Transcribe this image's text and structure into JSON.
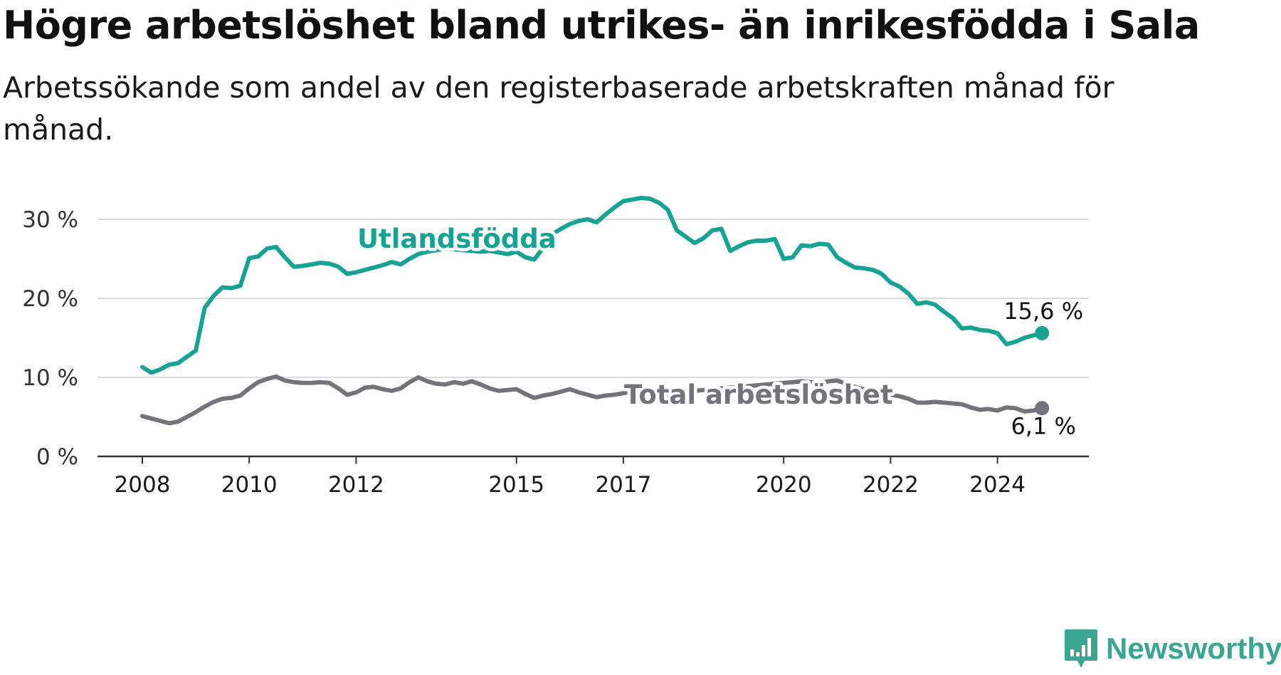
{
  "title": "Högre arbetslöshet bland utrikes- än inrikesfödda i Sala",
  "subtitle": "Arbetssökande som andel av den registerbaserade arbetskraften månad för månad.",
  "logo": {
    "text": "Newsworthy",
    "icon": "newsworthy-chart-icon",
    "color": "#3aa591"
  },
  "chart_data": {
    "type": "line",
    "title": "Högre arbetslöshet bland utrikes- än inrikesfödda i Sala",
    "subtitle": "Arbetssökande som andel av den registerbaserade arbetskraften månad för månad.",
    "xlabel": "",
    "ylabel": "",
    "xlim": [
      "2008-01",
      "2025-06"
    ],
    "ylim": [
      0,
      30
    ],
    "y_ticks": [
      0,
      10,
      20,
      30
    ],
    "y_tick_labels": [
      "0 %",
      "10 %",
      "20 %",
      "30 %"
    ],
    "x_ticks": [
      "2008",
      "2010",
      "2012",
      "2015",
      "2017",
      "2020",
      "2022",
      "2024"
    ],
    "grid": "horizontal",
    "legend": "none",
    "series": [
      {
        "name": "Utlandsfödda",
        "color": "#16a393",
        "end_label": "15,6 %",
        "points": [
          [
            "2008-01",
            11.3
          ],
          [
            "2008-03",
            10.6
          ],
          [
            "2008-05",
            11.0
          ],
          [
            "2008-07",
            11.6
          ],
          [
            "2008-09",
            11.8
          ],
          [
            "2008-11",
            12.6
          ],
          [
            "2009-01",
            13.4
          ],
          [
            "2009-03",
            18.8
          ],
          [
            "2009-05",
            20.3
          ],
          [
            "2009-07",
            21.4
          ],
          [
            "2009-09",
            21.3
          ],
          [
            "2009-11",
            21.6
          ],
          [
            "2010-01",
            25.1
          ],
          [
            "2010-03",
            25.3
          ],
          [
            "2010-05",
            26.3
          ],
          [
            "2010-07",
            26.5
          ],
          [
            "2010-09",
            25.2
          ],
          [
            "2010-11",
            24.0
          ],
          [
            "2011-01",
            24.1
          ],
          [
            "2011-03",
            24.3
          ],
          [
            "2011-05",
            24.5
          ],
          [
            "2011-07",
            24.4
          ],
          [
            "2011-09",
            24.0
          ],
          [
            "2011-11",
            23.1
          ],
          [
            "2012-01",
            23.3
          ],
          [
            "2012-03",
            23.6
          ],
          [
            "2012-05",
            23.9
          ],
          [
            "2012-07",
            24.2
          ],
          [
            "2012-09",
            24.6
          ],
          [
            "2012-11",
            24.3
          ],
          [
            "2013-01",
            25.0
          ],
          [
            "2013-03",
            25.6
          ],
          [
            "2013-05",
            25.9
          ],
          [
            "2013-07",
            26.1
          ],
          [
            "2013-09",
            26.3
          ],
          [
            "2013-11",
            26.2
          ],
          [
            "2014-01",
            26.1
          ],
          [
            "2014-03",
            26.0
          ],
          [
            "2014-05",
            25.9
          ],
          [
            "2014-07",
            26.0
          ],
          [
            "2014-09",
            25.8
          ],
          [
            "2014-11",
            25.6
          ],
          [
            "2015-01",
            25.9
          ],
          [
            "2015-03",
            25.2
          ],
          [
            "2015-05",
            24.9
          ],
          [
            "2015-07",
            26.4
          ],
          [
            "2015-09",
            28.1
          ],
          [
            "2015-11",
            28.8
          ],
          [
            "2016-01",
            29.4
          ],
          [
            "2016-03",
            29.8
          ],
          [
            "2016-05",
            30.0
          ],
          [
            "2016-07",
            29.6
          ],
          [
            "2016-09",
            30.6
          ],
          [
            "2016-11",
            31.5
          ],
          [
            "2017-01",
            32.3
          ],
          [
            "2017-03",
            32.5
          ],
          [
            "2017-05",
            32.7
          ],
          [
            "2017-07",
            32.6
          ],
          [
            "2017-09",
            32.1
          ],
          [
            "2017-11",
            31.2
          ],
          [
            "2018-01",
            28.6
          ],
          [
            "2018-03",
            27.8
          ],
          [
            "2018-05",
            27.0
          ],
          [
            "2018-07",
            27.6
          ],
          [
            "2018-09",
            28.6
          ],
          [
            "2018-11",
            28.8
          ],
          [
            "2019-01",
            26.0
          ],
          [
            "2019-03",
            26.6
          ],
          [
            "2019-05",
            27.1
          ],
          [
            "2019-07",
            27.3
          ],
          [
            "2019-09",
            27.3
          ],
          [
            "2019-11",
            27.5
          ],
          [
            "2020-01",
            25.0
          ],
          [
            "2020-03",
            25.2
          ],
          [
            "2020-05",
            26.7
          ],
          [
            "2020-07",
            26.6
          ],
          [
            "2020-09",
            26.9
          ],
          [
            "2020-11",
            26.8
          ],
          [
            "2021-01",
            25.2
          ],
          [
            "2021-03",
            24.5
          ],
          [
            "2021-05",
            23.9
          ],
          [
            "2021-07",
            23.8
          ],
          [
            "2021-09",
            23.6
          ],
          [
            "2021-11",
            23.1
          ],
          [
            "2022-01",
            22.0
          ],
          [
            "2022-03",
            21.5
          ],
          [
            "2022-05",
            20.6
          ],
          [
            "2022-07",
            19.3
          ],
          [
            "2022-09",
            19.5
          ],
          [
            "2022-11",
            19.2
          ],
          [
            "2023-01",
            18.3
          ],
          [
            "2023-03",
            17.5
          ],
          [
            "2023-05",
            16.2
          ],
          [
            "2023-07",
            16.3
          ],
          [
            "2023-09",
            16.0
          ],
          [
            "2023-11",
            15.9
          ],
          [
            "2024-01",
            15.6
          ],
          [
            "2024-03",
            14.2
          ],
          [
            "2024-05",
            14.5
          ],
          [
            "2024-07",
            15.0
          ],
          [
            "2024-09",
            15.3
          ],
          [
            "2024-11",
            15.6
          ]
        ]
      },
      {
        "name": "Total arbetslöshet",
        "color": "#75737a",
        "end_label": "6,1 %",
        "points": [
          [
            "2008-01",
            5.1
          ],
          [
            "2008-03",
            4.8
          ],
          [
            "2008-05",
            4.5
          ],
          [
            "2008-07",
            4.2
          ],
          [
            "2008-09",
            4.4
          ],
          [
            "2008-11",
            5.0
          ],
          [
            "2009-01",
            5.6
          ],
          [
            "2009-03",
            6.3
          ],
          [
            "2009-05",
            6.9
          ],
          [
            "2009-07",
            7.3
          ],
          [
            "2009-09",
            7.4
          ],
          [
            "2009-11",
            7.7
          ],
          [
            "2010-01",
            8.6
          ],
          [
            "2010-03",
            9.4
          ],
          [
            "2010-05",
            9.8
          ],
          [
            "2010-07",
            10.1
          ],
          [
            "2010-09",
            9.6
          ],
          [
            "2010-11",
            9.4
          ],
          [
            "2011-01",
            9.3
          ],
          [
            "2011-03",
            9.3
          ],
          [
            "2011-05",
            9.4
          ],
          [
            "2011-07",
            9.3
          ],
          [
            "2011-09",
            8.6
          ],
          [
            "2011-11",
            7.8
          ],
          [
            "2012-01",
            8.1
          ],
          [
            "2012-03",
            8.7
          ],
          [
            "2012-05",
            8.8
          ],
          [
            "2012-07",
            8.5
          ],
          [
            "2012-09",
            8.3
          ],
          [
            "2012-11",
            8.6
          ],
          [
            "2013-01",
            9.4
          ],
          [
            "2013-03",
            10.0
          ],
          [
            "2013-05",
            9.5
          ],
          [
            "2013-07",
            9.2
          ],
          [
            "2013-09",
            9.1
          ],
          [
            "2013-11",
            9.4
          ],
          [
            "2014-01",
            9.2
          ],
          [
            "2014-03",
            9.5
          ],
          [
            "2014-05",
            9.1
          ],
          [
            "2014-07",
            8.6
          ],
          [
            "2014-09",
            8.3
          ],
          [
            "2014-11",
            8.4
          ],
          [
            "2015-01",
            8.5
          ],
          [
            "2015-03",
            7.9
          ],
          [
            "2015-05",
            7.4
          ],
          [
            "2015-07",
            7.7
          ],
          [
            "2015-09",
            7.9
          ],
          [
            "2015-11",
            8.2
          ],
          [
            "2016-01",
            8.5
          ],
          [
            "2016-03",
            8.1
          ],
          [
            "2016-05",
            7.8
          ],
          [
            "2016-07",
            7.5
          ],
          [
            "2016-09",
            7.7
          ],
          [
            "2016-11",
            7.8
          ],
          [
            "2017-01",
            8.0
          ],
          [
            "2017-03",
            8.2
          ],
          [
            "2017-05",
            8.3
          ],
          [
            "2017-07",
            8.2
          ],
          [
            "2017-09",
            8.0
          ],
          [
            "2017-11",
            7.8
          ],
          [
            "2018-01",
            7.9
          ],
          [
            "2018-03",
            8.1
          ],
          [
            "2018-05",
            8.3
          ],
          [
            "2018-07",
            8.4
          ],
          [
            "2018-09",
            8.5
          ],
          [
            "2018-11",
            8.6
          ],
          [
            "2019-01",
            8.7
          ],
          [
            "2019-03",
            8.8
          ],
          [
            "2019-05",
            8.9
          ],
          [
            "2019-07",
            9.0
          ],
          [
            "2019-09",
            9.1
          ],
          [
            "2019-11",
            9.2
          ],
          [
            "2020-01",
            9.3
          ],
          [
            "2020-03",
            9.4
          ],
          [
            "2020-05",
            9.5
          ],
          [
            "2020-07",
            9.4
          ],
          [
            "2020-09",
            9.3
          ],
          [
            "2020-11",
            9.5
          ],
          [
            "2021-01",
            9.6
          ],
          [
            "2021-03",
            9.2
          ],
          [
            "2021-05",
            8.8
          ],
          [
            "2021-07",
            8.5
          ],
          [
            "2021-09",
            8.3
          ],
          [
            "2021-11",
            8.0
          ],
          [
            "2022-01",
            7.8
          ],
          [
            "2022-03",
            7.6
          ],
          [
            "2022-05",
            7.3
          ],
          [
            "2022-07",
            6.8
          ],
          [
            "2022-09",
            6.8
          ],
          [
            "2022-11",
            6.9
          ],
          [
            "2023-01",
            6.8
          ],
          [
            "2023-03",
            6.7
          ],
          [
            "2023-05",
            6.6
          ],
          [
            "2023-07",
            6.2
          ],
          [
            "2023-09",
            5.9
          ],
          [
            "2023-11",
            6.0
          ],
          [
            "2024-01",
            5.8
          ],
          [
            "2024-03",
            6.2
          ],
          [
            "2024-05",
            6.1
          ],
          [
            "2024-07",
            5.7
          ],
          [
            "2024-09",
            5.8
          ],
          [
            "2024-11",
            6.1
          ]
        ]
      }
    ]
  }
}
